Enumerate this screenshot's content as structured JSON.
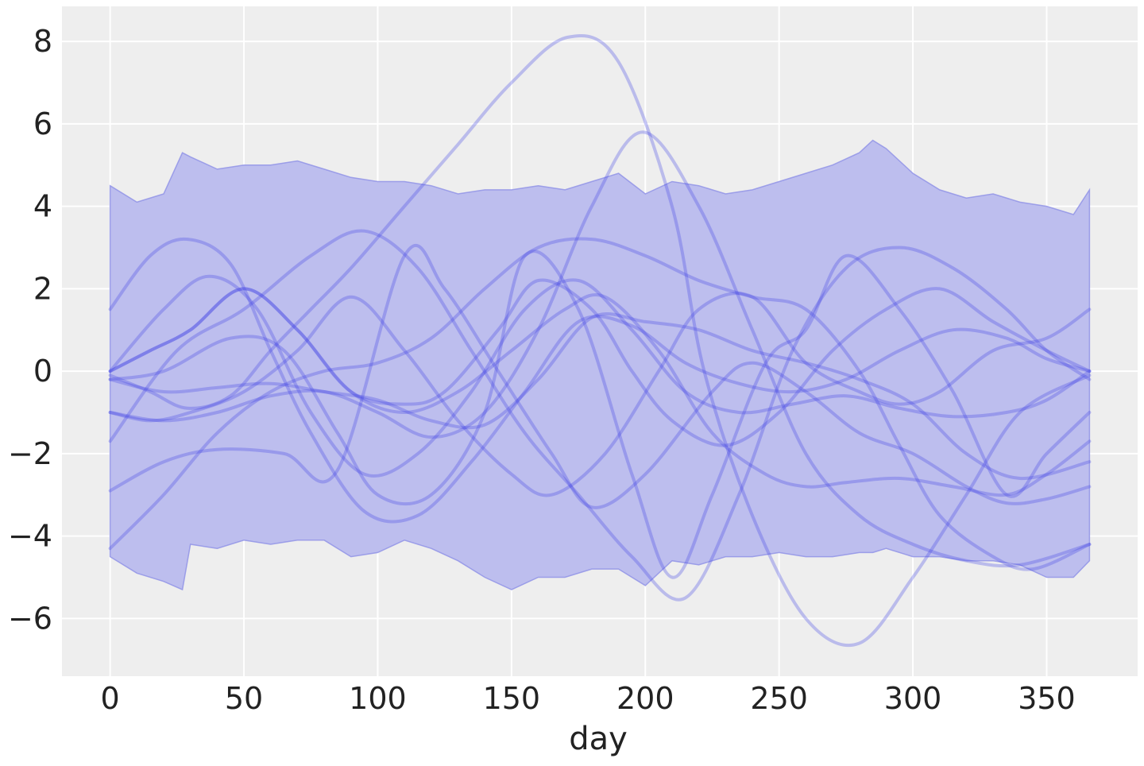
{
  "chart_data": {
    "type": "line",
    "title": "",
    "xlabel": "day",
    "ylabel": "",
    "xlim": [
      -18,
      384
    ],
    "ylim": [
      -7.4,
      8.85
    ],
    "xticks": [
      0,
      50,
      100,
      150,
      200,
      250,
      300,
      350
    ],
    "yticks": [
      -6,
      -4,
      -2,
      0,
      2,
      4,
      6,
      8
    ],
    "xtick_labels": [
      "0",
      "50",
      "100",
      "150",
      "200",
      "250",
      "300",
      "350"
    ],
    "ytick_labels": [
      "−6",
      "−4",
      "−2",
      "0",
      "2",
      "4",
      "6",
      "8"
    ],
    "grid": true,
    "legend": "none",
    "colors": {
      "background": "#eeeeee",
      "grid": "#ffffff",
      "band_fill": "#b9bbed",
      "band_edge": "#8d90e6",
      "line": "#4146e6"
    },
    "band": {
      "x": [
        0,
        10,
        20,
        27,
        30,
        40,
        50,
        60,
        70,
        80,
        90,
        100,
        110,
        120,
        130,
        140,
        150,
        160,
        170,
        180,
        190,
        200,
        210,
        220,
        230,
        240,
        250,
        260,
        270,
        280,
        285,
        290,
        300,
        310,
        320,
        330,
        340,
        350,
        360,
        366
      ],
      "upper": [
        4.5,
        4.1,
        4.3,
        5.3,
        5.2,
        4.9,
        5.0,
        5.0,
        5.1,
        4.9,
        4.7,
        4.6,
        4.6,
        4.5,
        4.3,
        4.4,
        4.4,
        4.5,
        4.4,
        4.6,
        4.8,
        4.3,
        4.6,
        4.5,
        4.3,
        4.4,
        4.6,
        4.8,
        5.0,
        5.3,
        5.6,
        5.4,
        4.8,
        4.4,
        4.2,
        4.3,
        4.1,
        4.0,
        3.8,
        4.4
      ],
      "lower": [
        -4.5,
        -4.9,
        -5.1,
        -5.3,
        -4.2,
        -4.3,
        -4.1,
        -4.2,
        -4.1,
        -4.1,
        -4.5,
        -4.4,
        -4.1,
        -4.3,
        -4.6,
        -5.0,
        -5.3,
        -5.0,
        -5.0,
        -4.8,
        -4.8,
        -5.2,
        -4.6,
        -4.7,
        -4.5,
        -4.5,
        -4.4,
        -4.5,
        -4.5,
        -4.4,
        -4.4,
        -4.3,
        -4.5,
        -4.5,
        -4.6,
        -4.6,
        -4.7,
        -5.0,
        -5.0,
        -4.6
      ]
    },
    "series": [
      {
        "x": [
          0,
          15,
          29,
          45,
          60,
          75,
          90,
          110,
          130,
          150,
          171,
          190,
          210,
          222,
          240,
          260,
          280,
          300,
          320,
          340,
          366
        ],
        "values": [
          -0.1,
          -0.5,
          -0.9,
          -0.6,
          0.5,
          1.5,
          2.5,
          4.0,
          5.5,
          7.0,
          8.1,
          7.5,
          4.0,
          0.0,
          -3.5,
          -6.0,
          -6.6,
          -5.0,
          -3.0,
          -1.0,
          -0.1
        ]
      },
      {
        "x": [
          0,
          20,
          40,
          60,
          80,
          100,
          120,
          140,
          160,
          180,
          199,
          220,
          240,
          260,
          280,
          300,
          320,
          340,
          366
        ],
        "values": [
          -1.0,
          -1.2,
          -1.0,
          -0.6,
          -0.5,
          -1.0,
          -1.6,
          -1.0,
          1.0,
          4.0,
          5.8,
          4.0,
          1.0,
          -2.0,
          -3.5,
          -4.2,
          -4.6,
          -4.7,
          -4.2
        ]
      },
      {
        "x": [
          0,
          15,
          29,
          45,
          60,
          75,
          95,
          115,
          135,
          155,
          175,
          195,
          215,
          235,
          255,
          275,
          295,
          315,
          335,
          350,
          366
        ],
        "values": [
          1.5,
          2.8,
          3.2,
          2.6,
          0.5,
          -1.5,
          -3.4,
          -3.5,
          -2.2,
          -0.5,
          1.2,
          1.1,
          0.2,
          -0.3,
          -0.5,
          -0.2,
          0.5,
          1.0,
          0.8,
          0.3,
          0.0
        ]
      },
      {
        "x": [
          0,
          20,
          37,
          55,
          75,
          95,
          115,
          135,
          155,
          175,
          195,
          215,
          235,
          255,
          275,
          295,
          315,
          335,
          350,
          366
        ],
        "values": [
          0.0,
          1.5,
          2.3,
          1.5,
          -1.0,
          -2.5,
          -2.0,
          -0.5,
          1.5,
          2.2,
          1.0,
          -0.5,
          -1.0,
          -0.8,
          -0.6,
          -0.9,
          -1.1,
          -1.0,
          -0.7,
          0.0
        ]
      },
      {
        "x": [
          0,
          20,
          45,
          65,
          85,
          100,
          120,
          140,
          155,
          175,
          195,
          210,
          225,
          245,
          260,
          275,
          295,
          315,
          335,
          350,
          366
        ],
        "values": [
          -0.2,
          0.0,
          0.8,
          0.5,
          -1.5,
          -3.0,
          -3.0,
          -1.0,
          2.8,
          1.5,
          -2.5,
          -5.0,
          -3.0,
          0.2,
          1.0,
          2.8,
          1.5,
          -0.5,
          -3.0,
          -2.0,
          -1.0
        ]
      },
      {
        "x": [
          0,
          25,
          50,
          75,
          95,
          115,
          135,
          155,
          175,
          195,
          215,
          235,
          255,
          275,
          295,
          315,
          335,
          350,
          366
        ],
        "values": [
          -1.7,
          0.5,
          1.5,
          2.8,
          3.4,
          2.5,
          0.5,
          -1.5,
          -3.0,
          -4.5,
          -5.5,
          -3.0,
          0.5,
          2.5,
          3.0,
          2.5,
          1.5,
          0.5,
          -0.2
        ]
      },
      {
        "x": [
          0,
          20,
          40,
          65,
          85,
          110,
          125,
          145,
          165,
          180,
          200,
          225,
          240,
          260,
          280,
          300,
          320,
          335,
          350,
          366
        ],
        "values": [
          -2.9,
          -2.2,
          -1.9,
          -2.0,
          -2.4,
          2.8,
          2.0,
          0.0,
          -2.0,
          -3.3,
          -2.5,
          -0.5,
          0.2,
          -0.5,
          -1.5,
          -2.0,
          -2.8,
          -3.2,
          -3.1,
          -2.8
        ]
      },
      {
        "x": [
          0,
          20,
          40,
          60,
          80,
          100,
          120,
          140,
          160,
          180,
          200,
          220,
          240,
          260,
          280,
          295,
          310,
          330,
          345,
          366
        ],
        "values": [
          -4.3,
          -3.0,
          -1.5,
          -0.5,
          0.0,
          0.2,
          0.8,
          2.0,
          3.0,
          3.2,
          2.8,
          2.2,
          1.8,
          1.5,
          0.0,
          -1.8,
          -3.5,
          -4.5,
          -4.8,
          -4.2
        ]
      },
      {
        "x": [
          0,
          15,
          30,
          50,
          70,
          90,
          110,
          130,
          150,
          165,
          185,
          205,
          220,
          240,
          260,
          280,
          295,
          310,
          330,
          350,
          366
        ],
        "values": [
          -1.0,
          -1.2,
          -1.0,
          -0.5,
          0.5,
          1.8,
          0.5,
          -1.2,
          -2.5,
          -3.0,
          -2.0,
          0.0,
          1.5,
          1.8,
          0.2,
          -0.5,
          -0.8,
          -0.5,
          0.5,
          0.8,
          1.5
        ]
      },
      {
        "x": [
          0,
          20,
          40,
          60,
          80,
          100,
          120,
          140,
          160,
          180,
          200,
          220,
          240,
          260,
          280,
          300,
          320,
          340,
          366
        ],
        "values": [
          -0.2,
          -0.5,
          -0.4,
          -0.3,
          -0.5,
          -0.7,
          -1.2,
          -1.3,
          -0.2,
          1.3,
          1.2,
          1.0,
          0.5,
          0.2,
          -0.2,
          -0.8,
          -2.0,
          -2.6,
          -2.2
        ]
      },
      {
        "x": [
          0,
          15,
          30,
          50,
          70,
          90,
          110,
          130,
          150,
          170,
          185,
          205,
          225,
          245,
          260,
          275,
          295,
          315,
          335,
          350,
          366
        ],
        "values": [
          0.0,
          0.5,
          1.0,
          2.0,
          1.0,
          -0.5,
          -1.0,
          -0.5,
          0.5,
          1.5,
          1.8,
          0.5,
          -1.5,
          -2.5,
          -2.8,
          -2.7,
          -2.6,
          -2.8,
          -3.0,
          -2.5,
          -1.7
        ]
      },
      {
        "x": [
          0,
          15,
          30,
          50,
          70,
          90,
          110,
          125,
          145,
          160,
          180,
          195,
          210,
          230,
          250,
          270,
          290,
          310,
          330,
          350,
          366
        ],
        "values": [
          0.0,
          0.5,
          1.0,
          2.0,
          1.0,
          -0.5,
          -0.8,
          -0.5,
          1.0,
          2.2,
          1.5,
          0.0,
          -1.2,
          -1.8,
          -1.0,
          0.5,
          1.5,
          2.0,
          1.2,
          0.5,
          0.0
        ]
      }
    ]
  }
}
